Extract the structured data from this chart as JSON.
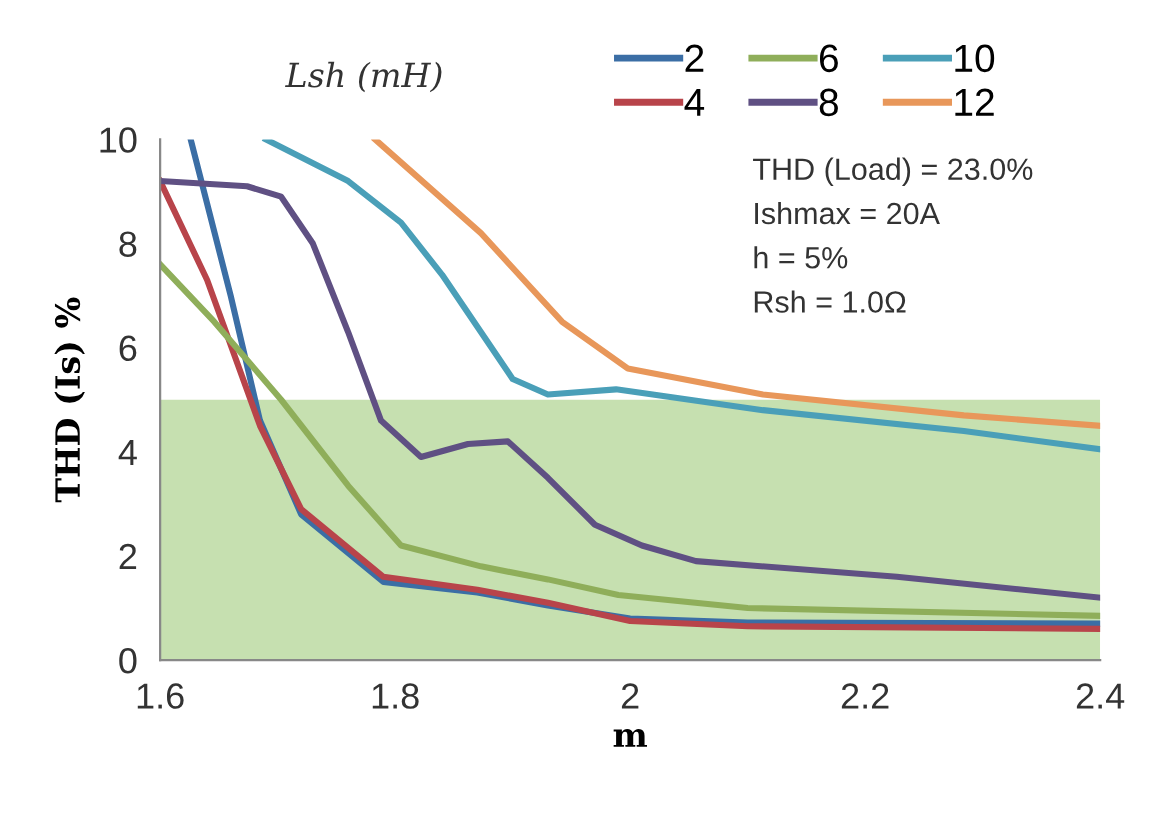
{
  "chart_data": {
    "type": "line",
    "xlabel": "m",
    "ylabel": "THD (Is) %",
    "legend_title": "Lsh (mH)",
    "xlim": [
      1.6,
      2.4
    ],
    "xticks": [
      1.6,
      1.8,
      2,
      2.2,
      2.4
    ],
    "ylim": [
      0,
      10
    ],
    "yticks": [
      0,
      2,
      4,
      6,
      8,
      10
    ],
    "grid": false,
    "legend": "top",
    "marker": "none",
    "line_style": "solid",
    "bands": [
      {
        "axis": "y",
        "from": 0,
        "to": 5,
        "color": "#c6e0b0"
      }
    ],
    "annotations": [
      "THD (Load) = 23.0%",
      "Ishmax = 20A",
      "h = 5%",
      "Rsh = 1.0Ω"
    ],
    "series": [
      {
        "name": "2",
        "color": "#3b6ea5",
        "x": [
          1.626,
          1.66,
          1.685,
          1.72,
          1.79,
          1.87,
          1.93,
          2.0,
          2.1,
          2.4
        ],
        "values": [
          10,
          7.0,
          4.6,
          2.8,
          1.5,
          1.3,
          1.05,
          0.8,
          0.72,
          0.7
        ]
      },
      {
        "name": "4",
        "color": "#b8444a",
        "x": [
          1.6,
          1.64,
          1.685,
          1.72,
          1.79,
          1.87,
          1.93,
          2.0,
          2.1,
          2.4
        ],
        "values": [
          9.2,
          7.3,
          4.5,
          2.9,
          1.6,
          1.35,
          1.1,
          0.75,
          0.65,
          0.6
        ]
      },
      {
        "name": "6",
        "color": "#8fae5a",
        "x": [
          1.6,
          1.646,
          1.703,
          1.76,
          1.805,
          1.873,
          1.93,
          1.99,
          2.1,
          2.4
        ],
        "values": [
          7.6,
          6.5,
          5.0,
          3.35,
          2.2,
          1.8,
          1.55,
          1.25,
          1.0,
          0.85
        ]
      },
      {
        "name": "8",
        "color": "#5f5083",
        "x": [
          1.6,
          1.674,
          1.703,
          1.73,
          1.76,
          1.788,
          1.822,
          1.862,
          1.896,
          1.93,
          1.97,
          2.01,
          2.056,
          2.227,
          2.4
        ],
        "values": [
          9.2,
          9.1,
          8.9,
          8.0,
          6.3,
          4.6,
          3.9,
          4.15,
          4.2,
          3.5,
          2.6,
          2.2,
          1.9,
          1.6,
          1.2
        ]
      },
      {
        "name": "10",
        "color": "#4a9fb8",
        "x": [
          1.69,
          1.76,
          1.805,
          1.84,
          1.873,
          1.9,
          1.93,
          1.988,
          2.113,
          2.284,
          2.4
        ],
        "values": [
          10,
          9.2,
          8.4,
          7.4,
          6.3,
          5.4,
          5.1,
          5.2,
          4.8,
          4.4,
          4.05
        ]
      },
      {
        "name": "12",
        "color": "#e8975a",
        "x": [
          1.783,
          1.873,
          1.942,
          1.998,
          2.113,
          2.284,
          2.4
        ],
        "values": [
          10,
          8.2,
          6.5,
          5.6,
          5.1,
          4.7,
          4.5
        ]
      }
    ]
  }
}
